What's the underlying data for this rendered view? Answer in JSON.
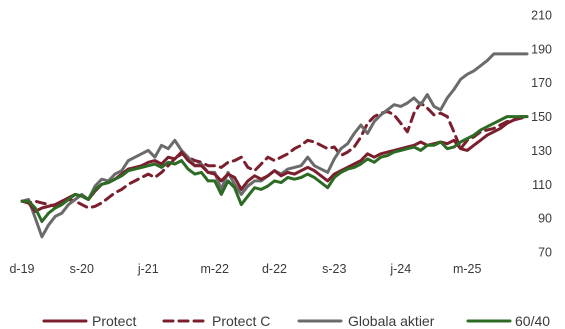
{
  "chart_data": {
    "type": "line",
    "title": "",
    "xlabel": "",
    "ylabel": "",
    "ylim": [
      70,
      210
    ],
    "yticks": [
      70,
      90,
      110,
      130,
      150,
      170,
      190,
      210
    ],
    "y_axis_side": "right",
    "grid": false,
    "legend_position": "bottom",
    "x_ticks": [
      {
        "label": "d-19",
        "index": 0
      },
      {
        "label": "s-20",
        "index": 9
      },
      {
        "label": "j-21",
        "index": 19
      },
      {
        "label": "m-22",
        "index": 29
      },
      {
        "label": "d-22",
        "index": 38
      },
      {
        "label": "s-23",
        "index": 47
      },
      {
        "label": "j-24",
        "index": 57
      },
      {
        "label": "m-25",
        "index": 67
      }
    ],
    "series": [
      {
        "name": "Protect",
        "color": "#7b1f2e",
        "dash": "solid",
        "values": [
          100,
          99,
          94,
          96,
          97,
          98,
          100,
          102,
          104,
          103,
          101,
          106,
          110,
          111,
          113,
          116,
          119,
          120,
          121,
          123,
          124,
          122,
          126,
          125,
          129,
          124,
          121,
          121,
          117,
          116,
          112,
          116,
          114,
          107,
          112,
          115,
          113,
          115,
          118,
          115,
          117,
          116,
          118,
          120,
          118,
          115,
          112,
          116,
          118,
          120,
          122,
          124,
          128,
          126,
          128,
          129,
          130,
          131,
          132,
          133,
          135,
          133,
          134,
          135,
          134,
          136,
          131,
          130,
          133,
          136,
          139,
          141,
          143,
          146,
          148,
          150,
          150
        ]
      },
      {
        "name": "Protect C",
        "color": "#7b1f2e",
        "dash": "dashed",
        "values": [
          100,
          99,
          100,
          99,
          98,
          97,
          99,
          101,
          100,
          98,
          96,
          97,
          99,
          102,
          105,
          107,
          110,
          112,
          114,
          116,
          114,
          117,
          121,
          125,
          128,
          126,
          124,
          123,
          121,
          121,
          120,
          123,
          124,
          126,
          120,
          118,
          122,
          126,
          124,
          126,
          128,
          131,
          133,
          136,
          135,
          133,
          131,
          132,
          127,
          129,
          132,
          138,
          146,
          150,
          152,
          153,
          151,
          146,
          141,
          152,
          158,
          155,
          151,
          152,
          150,
          141,
          131,
          136,
          138,
          141,
          142,
          143,
          145,
          147,
          148,
          149,
          150
        ]
      },
      {
        "name": "Globala aktier",
        "color": "#6b6b6b",
        "dash": "solid",
        "values": [
          100,
          101,
          90,
          79,
          86,
          91,
          93,
          98,
          101,
          104,
          101,
          109,
          113,
          112,
          116,
          118,
          124,
          126,
          128,
          130,
          126,
          133,
          131,
          136,
          130,
          126,
          121,
          122,
          117,
          117,
          107,
          117,
          110,
          104,
          109,
          112,
          112,
          115,
          118,
          116,
          119,
          120,
          121,
          126,
          121,
          119,
          117,
          125,
          131,
          134,
          140,
          145,
          140,
          147,
          151,
          154,
          157,
          156,
          158,
          161,
          157,
          163,
          156,
          154,
          161,
          166,
          172,
          175,
          177,
          180,
          183,
          187,
          187,
          187,
          187,
          187,
          187
        ]
      },
      {
        "name": "60/40",
        "color": "#2d6b24",
        "dash": "solid",
        "values": [
          100,
          100,
          96,
          88,
          93,
          96,
          98,
          101,
          104,
          103,
          101,
          107,
          110,
          111,
          113,
          115,
          118,
          119,
          120,
          121,
          122,
          120,
          123,
          122,
          124,
          119,
          116,
          117,
          112,
          112,
          104,
          112,
          108,
          98,
          103,
          108,
          107,
          109,
          112,
          111,
          114,
          113,
          114,
          116,
          114,
          111,
          108,
          114,
          117,
          119,
          120,
          122,
          125,
          123,
          126,
          127,
          129,
          130,
          131,
          132,
          130,
          133,
          133,
          135,
          131,
          132,
          135,
          137,
          139,
          142,
          144,
          146,
          148,
          150,
          150,
          150,
          150
        ]
      }
    ]
  }
}
